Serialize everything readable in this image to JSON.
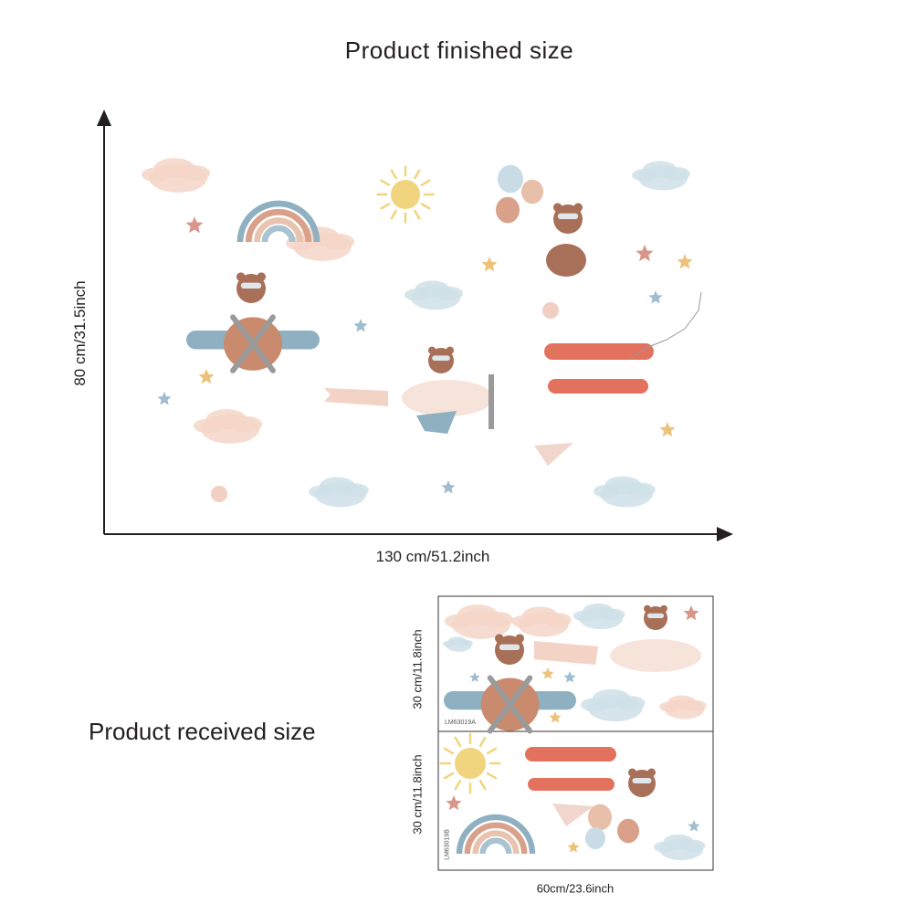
{
  "finished": {
    "title": "Product finished size",
    "height_label": "80 cm/31.5inch",
    "width_label": "130 cm/51.2inch"
  },
  "received": {
    "title": "Product received size",
    "sheet_a": {
      "height_label": "30 cm/11.8inch",
      "code": "LM63019A"
    },
    "sheet_b": {
      "height_label": "30 cm/11.8inch",
      "code": "LM63019B"
    },
    "width_label": "60cm/23.6inch"
  },
  "colors": {
    "text": "#231f20",
    "cloud_pink": "#f5d6c8",
    "cloud_blue": "#cfe0e8",
    "star_pink": "#d9968a",
    "star_yellow": "#ecc27a",
    "star_blue": "#9fbcd0",
    "plane_blue": "#8fb0c0",
    "plane_red": "#e2725e",
    "bear": "#a87058",
    "sun": "#f1d47e"
  }
}
